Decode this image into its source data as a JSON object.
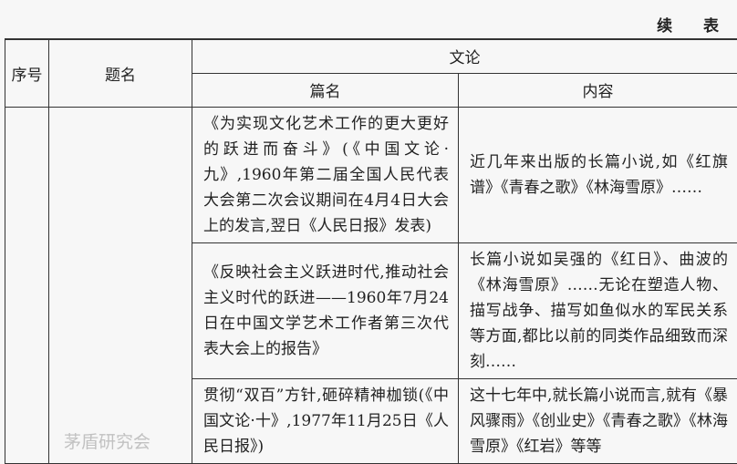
{
  "continued_label": "续 表",
  "headers": {
    "no": "序号",
    "title": "题名",
    "wenlun": "文论",
    "piece": "篇名",
    "content": "内容"
  },
  "rows": [
    {
      "piece": "《为实现文化艺术工作的更大更好的跃进而奋斗》(《中国文论·九》,1960年第二届全国人民代表大会第二次会议期间在4月4日大会上的发言,翌日《人民日报》发表)",
      "content": "近几年来出版的长篇小说,如《红旗谱》《青春之歌》《林海雪原》……"
    },
    {
      "piece": "《反映社会主义跃进时代,推动社会主义时代的跃进——1960年7月24日在中国文学艺术工作者第三次代表大会上的报告》",
      "content": "长篇小说如吴强的《红日》、曲波的《林海雪原》……无论在塑造人物、描写战争、描写如鱼似水的军民关系等方面,都比以前的同类作品细致而深刻……"
    },
    {
      "piece": "贯彻“双百”方针,砸碎精神枷锁(《中国文论·十》,1977年11月25日《人民日报》)",
      "content": "这十七年中,就长篇小说而言,就有《暴风骤雨》《创业史》《青春之歌》《林海雪原》《红岩》等等"
    }
  ],
  "watermark": "茅盾研究会"
}
